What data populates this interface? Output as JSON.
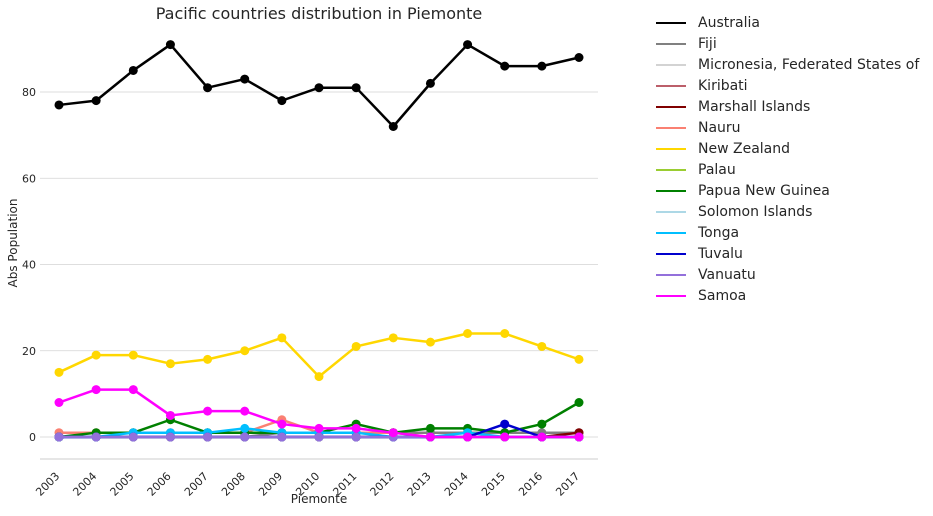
{
  "chart_data": {
    "type": "line",
    "title": "Pacific countries distribution in Piemonte",
    "xlabel": "Piemonte",
    "ylabel": "Abs Population",
    "categories": [
      "2003",
      "2004",
      "2005",
      "2006",
      "2007",
      "2008",
      "2009",
      "2010",
      "2011",
      "2012",
      "2013",
      "2014",
      "2015",
      "2016",
      "2017"
    ],
    "yticks": [
      0,
      20,
      40,
      60,
      80
    ],
    "ylim": [
      -5,
      95
    ],
    "grid": "horizontal",
    "legend_placement": "outside-right",
    "series": [
      {
        "name": "Australia",
        "color": "#000000",
        "values": [
          77,
          78,
          85,
          91,
          81,
          83,
          78,
          81,
          81,
          72,
          82,
          91,
          86,
          86,
          88
        ]
      },
      {
        "name": "Fiji",
        "color": "#808080",
        "values": [
          0,
          0,
          0,
          0,
          0,
          0,
          1,
          1,
          1,
          1,
          1,
          1,
          1,
          1,
          1
        ]
      },
      {
        "name": "Micronesia, Federated States of",
        "color": "#d3d3d3",
        "values": [
          0,
          0,
          0,
          0,
          0,
          0,
          0,
          0,
          0,
          0,
          0,
          0,
          0,
          0,
          0
        ]
      },
      {
        "name": "Kiribati",
        "color": "#bc5f6a",
        "values": [
          0,
          0,
          0,
          0,
          0,
          0,
          0,
          0,
          0,
          0,
          0,
          0,
          0,
          0,
          0
        ]
      },
      {
        "name": "Marshall Islands",
        "color": "#800000",
        "values": [
          0,
          0,
          0,
          0,
          0,
          0,
          0,
          0,
          0,
          0,
          0,
          0,
          0,
          0,
          1
        ]
      },
      {
        "name": "Nauru",
        "color": "#fa8072",
        "values": [
          1,
          1,
          1,
          1,
          1,
          1,
          4,
          1,
          1,
          1,
          0,
          0,
          0,
          0,
          0
        ]
      },
      {
        "name": "New Zealand",
        "color": "#ffd700",
        "values": [
          15,
          19,
          19,
          17,
          18,
          20,
          23,
          14,
          21,
          23,
          22,
          24,
          24,
          21,
          18
        ]
      },
      {
        "name": "Palau",
        "color": "#9acd32",
        "values": [
          0,
          0,
          0,
          0,
          0,
          0,
          0,
          0,
          0,
          0,
          0,
          0,
          0,
          0,
          0
        ]
      },
      {
        "name": "Papua New Guinea",
        "color": "#008000",
        "values": [
          0,
          1,
          1,
          4,
          1,
          1,
          1,
          1,
          3,
          1,
          2,
          2,
          1,
          3,
          8
        ]
      },
      {
        "name": "Solomon Islands",
        "color": "#add8e6",
        "values": [
          0,
          0,
          0,
          0,
          0,
          0,
          0,
          0,
          0,
          0,
          0,
          0,
          0,
          0,
          0
        ]
      },
      {
        "name": "Tonga",
        "color": "#00bfff",
        "values": [
          0,
          0,
          1,
          1,
          1,
          2,
          1,
          1,
          1,
          0,
          0,
          1,
          0,
          0,
          0
        ]
      },
      {
        "name": "Tuvalu",
        "color": "#0000cd",
        "values": [
          0,
          0,
          0,
          0,
          0,
          0,
          0,
          0,
          0,
          0,
          0,
          0,
          3,
          0,
          0
        ]
      },
      {
        "name": "Vanuatu",
        "color": "#9370db",
        "values": [
          0,
          0,
          0,
          0,
          0,
          0,
          0,
          0,
          0,
          0,
          0,
          0,
          0,
          0,
          0
        ]
      },
      {
        "name": "Samoa",
        "color": "#ff00ff",
        "values": [
          8,
          11,
          11,
          5,
          6,
          6,
          3,
          2,
          2,
          1,
          0,
          0,
          0,
          0,
          0
        ]
      }
    ]
  }
}
